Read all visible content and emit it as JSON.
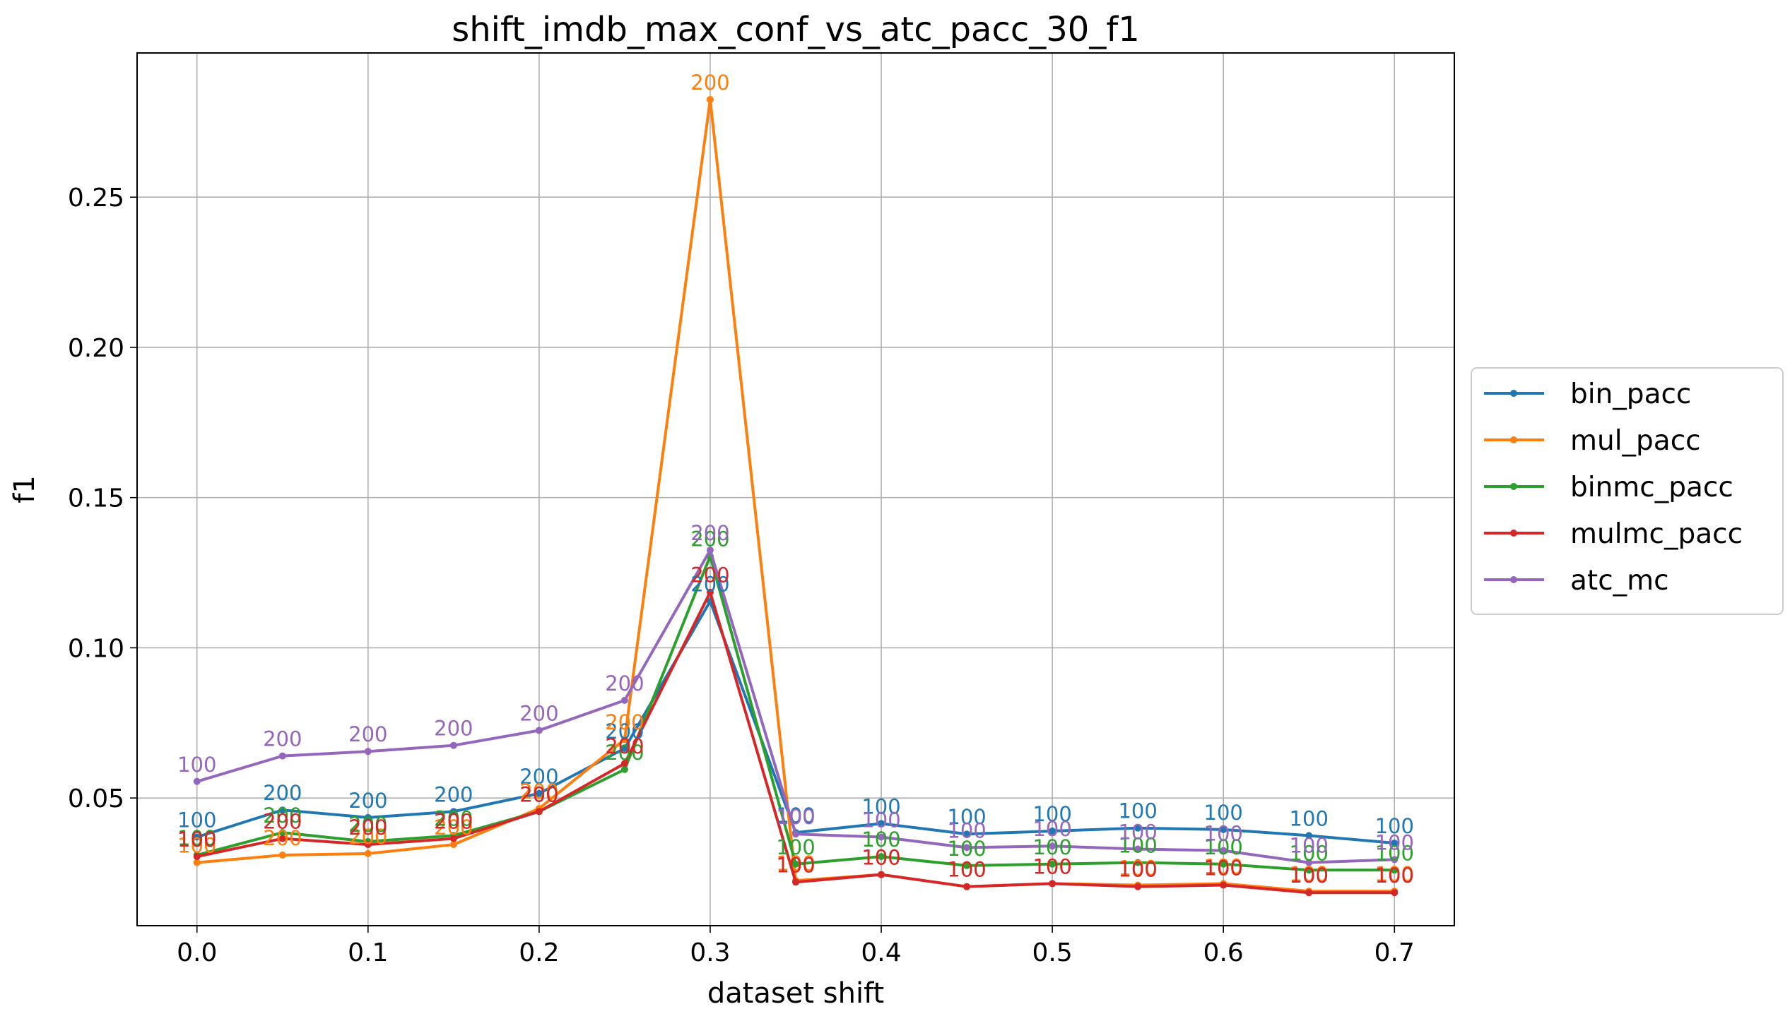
{
  "chart_data": {
    "type": "line",
    "title": "shift_imdb_max_conf_vs_atc_pacc_30_f1",
    "xlabel": "dataset shift",
    "ylabel": "f1",
    "xlim": [
      -0.035,
      0.735
    ],
    "ylim": [
      0.0075,
      0.298
    ],
    "x_ticks": [
      0.0,
      0.1,
      0.2,
      0.3,
      0.4,
      0.5,
      0.6,
      0.7
    ],
    "x_tick_labels": [
      "0.0",
      "0.1",
      "0.2",
      "0.3",
      "0.4",
      "0.5",
      "0.6",
      "0.7"
    ],
    "y_ticks": [
      0.05,
      0.1,
      0.15,
      0.2,
      0.25
    ],
    "y_tick_labels": [
      "0.05",
      "0.10",
      "0.15",
      "0.20",
      "0.25"
    ],
    "grid": true,
    "legend_position": "right-center",
    "x": [
      0.0,
      0.05,
      0.1,
      0.15,
      0.2,
      0.25,
      0.3,
      0.35,
      0.4,
      0.45,
      0.5,
      0.55,
      0.6,
      0.65,
      0.7
    ],
    "annotations": [
      "100",
      "200",
      "200",
      "200",
      "200",
      "200",
      "200",
      "100",
      "100",
      "100",
      "100",
      "100",
      "100",
      "100",
      "100"
    ],
    "series": [
      {
        "name": "bin_pacc",
        "color": "#1f77b4",
        "values": [
          0.037,
          0.046,
          0.0435,
          0.0455,
          0.0515,
          0.0665,
          0.1155,
          0.0385,
          0.0415,
          0.038,
          0.039,
          0.04,
          0.0395,
          0.0375,
          0.035
        ]
      },
      {
        "name": "mul_pacc",
        "color": "#ff7f0e",
        "values": [
          0.0285,
          0.031,
          0.0315,
          0.0345,
          0.0465,
          0.0695,
          0.2825,
          0.0225,
          0.0245,
          0.0205,
          0.0215,
          0.021,
          0.0215,
          0.019,
          0.019
        ]
      },
      {
        "name": "binmc_pacc",
        "color": "#2ca02c",
        "values": [
          0.031,
          0.0385,
          0.0355,
          0.0375,
          0.0455,
          0.0595,
          0.1305,
          0.028,
          0.0305,
          0.0275,
          0.028,
          0.0285,
          0.028,
          0.026,
          0.026
        ]
      },
      {
        "name": "mulmc_pacc",
        "color": "#d62728",
        "values": [
          0.0305,
          0.0365,
          0.0345,
          0.0365,
          0.0455,
          0.0615,
          0.1185,
          0.022,
          0.0245,
          0.0205,
          0.0215,
          0.0205,
          0.021,
          0.0185,
          0.0185
        ]
      },
      {
        "name": "atc_mc",
        "color": "#9467bd",
        "values": [
          0.0555,
          0.064,
          0.0655,
          0.0675,
          0.0725,
          0.0825,
          0.1325,
          0.038,
          0.037,
          0.0335,
          0.034,
          0.033,
          0.0325,
          0.0285,
          0.0295
        ]
      }
    ]
  }
}
